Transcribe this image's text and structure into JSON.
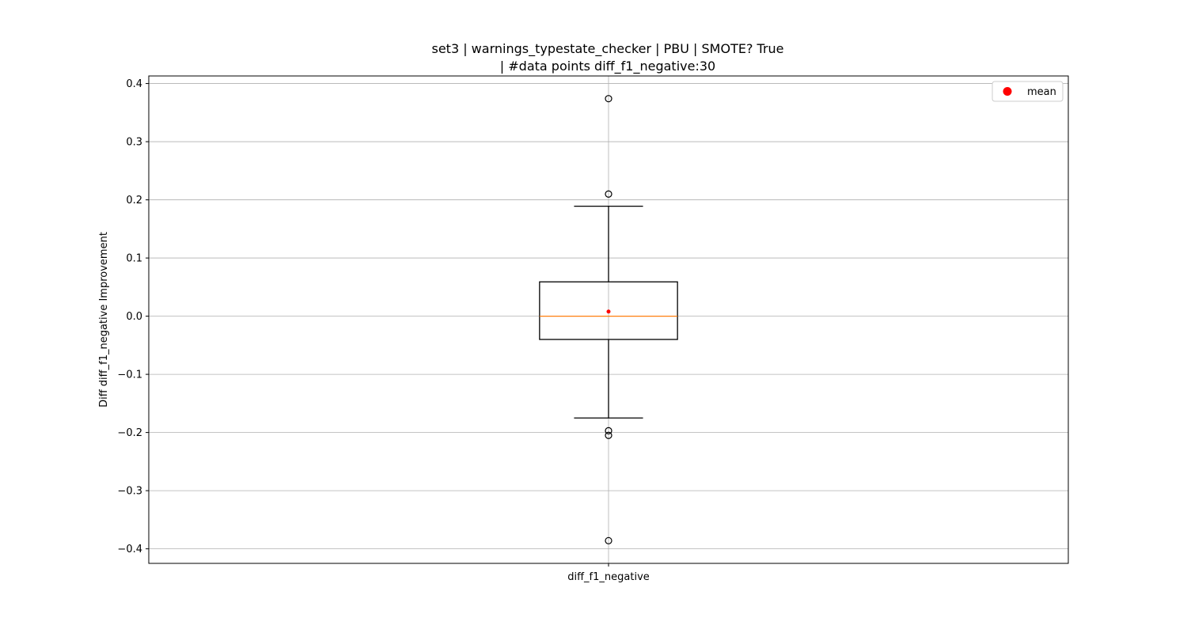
{
  "chart_data": {
    "type": "box",
    "title_lines": [
      "set3 | warnings_typestate_checker | PBU | SMOTE? True",
      "| #data points diff_f1_negative:30"
    ],
    "xlabel": "",
    "ylabel": "Diff diff_f1_negative Improvement",
    "categories": [
      "diff_f1_negative"
    ],
    "ylim": [
      -0.425,
      0.413
    ],
    "yticks": [
      -0.4,
      -0.3,
      -0.2,
      -0.1,
      0.0,
      0.1,
      0.2,
      0.3,
      0.4
    ],
    "ytick_labels": [
      "−0.4",
      "−0.3",
      "−0.2",
      "−0.1",
      "0.0",
      "0.1",
      "0.2",
      "0.3",
      "0.4"
    ],
    "grid": true,
    "legend": {
      "placement": "top-right",
      "entries": [
        {
          "label": "mean",
          "color": "#ff0000",
          "marker": "circle"
        }
      ]
    },
    "boxes": [
      {
        "category": "diff_f1_negative",
        "whisker_low": -0.175,
        "q1": -0.04,
        "median": 0.0,
        "q3": 0.059,
        "whisker_high": 0.189,
        "mean": 0.008,
        "outliers": [
          0.374,
          0.21,
          -0.197,
          -0.205,
          -0.386
        ]
      }
    ],
    "colors": {
      "box": "#000000",
      "median": "#ff7f0e",
      "mean": "#ff0000",
      "grid": "#b0b0b0"
    }
  }
}
